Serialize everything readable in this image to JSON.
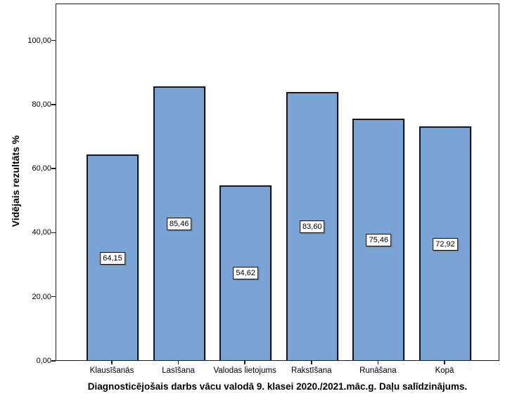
{
  "chart_data": {
    "type": "bar",
    "title": "Diagnosticējošais darbs vācu valodā 9. klasei 2020./2021.māc.g. Daļu salīdzinājums.",
    "ylabel": "Vidējais rezultāts %",
    "xlabel": "",
    "categories": [
      "Klausīšanās",
      "Lasīšana",
      "Valodas lietojums",
      "Rakstīšana",
      "Runāšana",
      "Kopā"
    ],
    "values": [
      64.15,
      85.46,
      54.62,
      83.6,
      75.46,
      72.92
    ],
    "value_labels": [
      "64,15",
      "85,46",
      "54,62",
      "83,60",
      "75,46",
      "72,92"
    ],
    "ylim": [
      0,
      100
    ],
    "yticks": [
      0,
      20,
      40,
      60,
      80,
      100
    ],
    "ytick_labels": [
      "0,00",
      "20,00",
      "40,00",
      "60,00",
      "80,00",
      "100,00"
    ],
    "grid": false,
    "legend": null,
    "colors": {
      "bar_fill": "#7AA4D5",
      "bar_border": "#14171c",
      "frame": "#1c1c1c",
      "label_box_bg": "#ffffff",
      "label_box_border": "#000000",
      "text": "#000000",
      "background": "#ffffff"
    }
  }
}
